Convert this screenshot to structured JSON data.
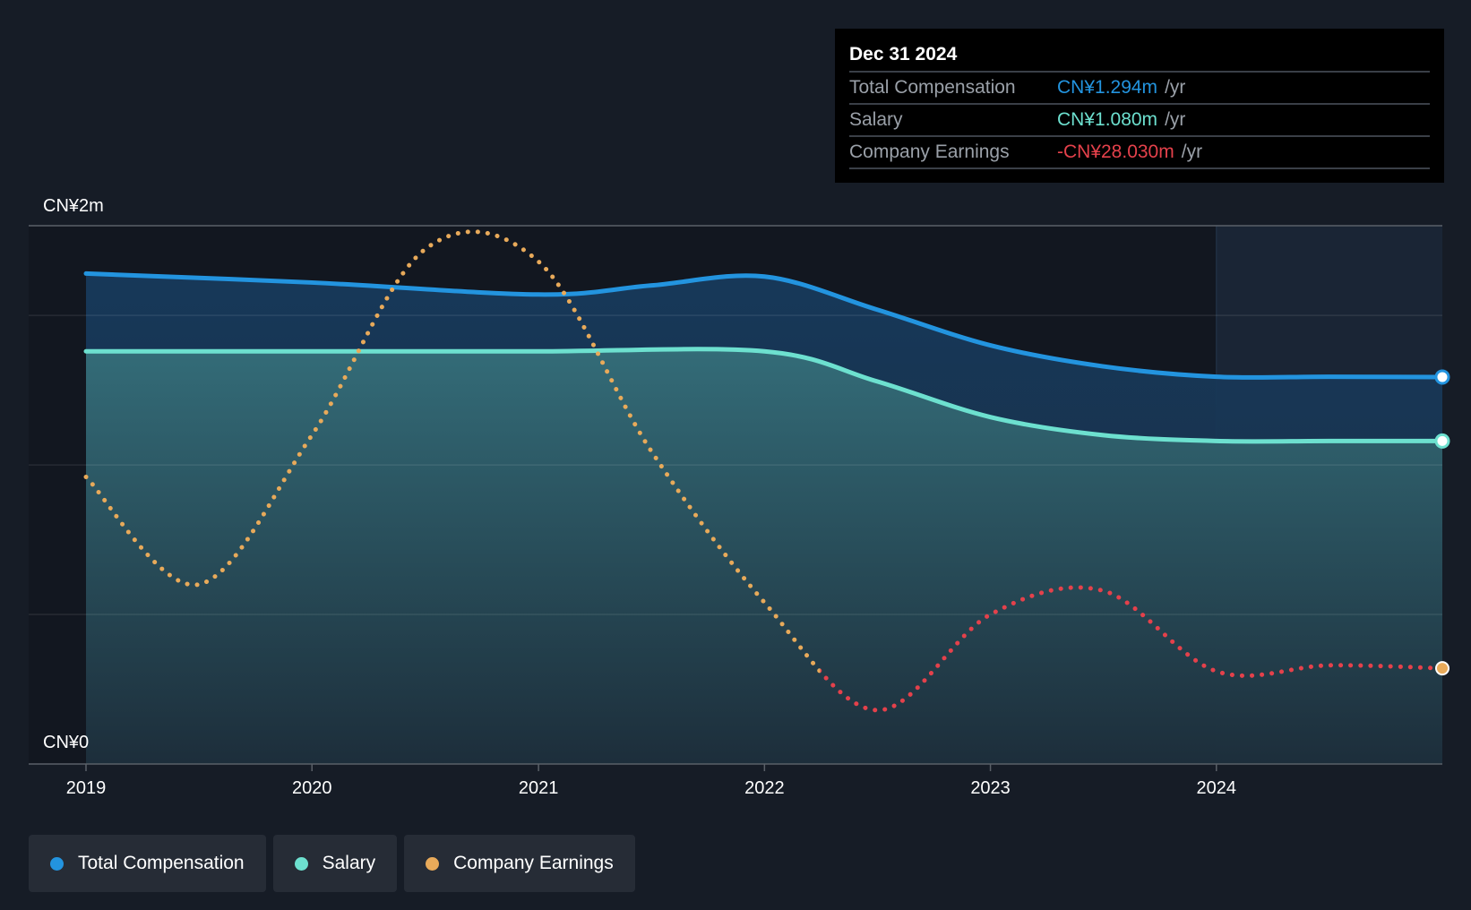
{
  "colors": {
    "total_compensation": "#2394df",
    "salary": "#6de0cf",
    "earnings_positive": "#e8aa5a",
    "earnings_negative": "#e4414b",
    "background": "#161c26"
  },
  "tooltip": {
    "date": "Dec 31 2024",
    "rows": [
      {
        "label": "Total Compensation",
        "value": "CN¥1.294m",
        "unit": "/yr",
        "color": "#2394df"
      },
      {
        "label": "Salary",
        "value": "CN¥1.080m",
        "unit": "/yr",
        "color": "#6de0cf"
      },
      {
        "label": "Company Earnings",
        "value": "-CN¥28.030m",
        "unit": "/yr",
        "color": "#e4414b"
      }
    ]
  },
  "legend": [
    {
      "label": "Total Compensation",
      "color": "#2394df"
    },
    {
      "label": "Salary",
      "color": "#6de0cf"
    },
    {
      "label": "Company Earnings",
      "color": "#e8aa5a"
    }
  ],
  "chart_data": {
    "type": "area",
    "title": "",
    "xlabel": "",
    "ylabel": "",
    "y_tick_labels": [
      "CN¥2m",
      "CN¥0"
    ],
    "ylim": [
      0,
      1.8
    ],
    "x_ticks": [
      "2019",
      "2020",
      "2021",
      "2022",
      "2023",
      "2024"
    ],
    "xlim": [
      "2019-01-01",
      "2024-12-31"
    ],
    "forecast_region_start": "2024-01-01",
    "grid": true,
    "series": [
      {
        "name": "Total Compensation",
        "x": [
          "2019-01-01",
          "2020-01-01",
          "2021-01-01",
          "2021-07-01",
          "2022-01-01",
          "2022-07-01",
          "2023-01-01",
          "2023-07-01",
          "2024-01-01",
          "2024-07-01",
          "2024-12-31"
        ],
        "y": [
          1.64,
          1.61,
          1.57,
          1.6,
          1.63,
          1.52,
          1.4,
          1.33,
          1.295,
          1.295,
          1.294
        ]
      },
      {
        "name": "Salary",
        "x": [
          "2019-01-01",
          "2020-01-01",
          "2021-01-01",
          "2022-01-01",
          "2022-07-01",
          "2023-01-01",
          "2023-07-01",
          "2024-01-01",
          "2024-07-01",
          "2024-12-31"
        ],
        "y": [
          1.38,
          1.38,
          1.38,
          1.38,
          1.28,
          1.16,
          1.1,
          1.08,
          1.08,
          1.08
        ]
      },
      {
        "name": "Company Earnings",
        "x": [
          "2019-01-01",
          "2019-07-01",
          "2020-01-01",
          "2020-07-01",
          "2021-01-01",
          "2021-07-01",
          "2022-01-01",
          "2022-07-01",
          "2023-01-01",
          "2023-07-01",
          "2024-01-01",
          "2024-07-01",
          "2024-12-31"
        ],
        "y": [
          0.96,
          0.6,
          1.1,
          1.72,
          1.68,
          1.05,
          0.54,
          0.18,
          0.5,
          0.58,
          0.31,
          0.33,
          0.32
        ],
        "negative_from": "2022-04-01"
      }
    ]
  }
}
